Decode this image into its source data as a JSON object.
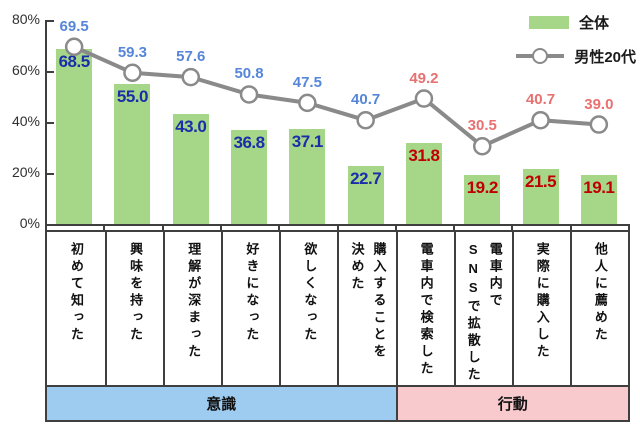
{
  "chart_data": {
    "type": "bar+line",
    "categories": [
      "初めて知った",
      "興味を持った",
      "理解が深まった",
      "好きになった",
      "欲しくなった",
      "購入することを\n決めた",
      "電車内で検索した",
      "電車内で\nSNSで拡散した",
      "実際に購入した",
      "他人に薦めた"
    ],
    "series": [
      {
        "name": "全体",
        "type": "bar",
        "values": [
          68.5,
          55.0,
          43.0,
          36.8,
          37.1,
          22.7,
          31.8,
          19.2,
          21.5,
          19.1
        ],
        "bar_color": "#A6D788",
        "label_color_awareness": "#1B2EA9",
        "label_color_action": "#C00000"
      },
      {
        "name": "男性20代",
        "type": "line",
        "values": [
          69.5,
          59.3,
          57.6,
          50.8,
          47.5,
          40.7,
          49.2,
          30.5,
          40.7,
          39.0
        ],
        "line_color": "#8A8A8A",
        "marker": "white-circle",
        "label_color_awareness": "#5586D8",
        "label_color_action": "#E87070"
      }
    ],
    "awareness_count": 6,
    "ylim": [
      0,
      80
    ],
    "yticks": [
      {
        "label": "0%",
        "value": 0
      },
      {
        "label": "20%",
        "value": 20
      },
      {
        "label": "40%",
        "value": 40
      },
      {
        "label": "60%",
        "value": 60
      },
      {
        "label": "80%",
        "value": 80
      }
    ],
    "grid": "off",
    "legend_position": "top-right",
    "groups": [
      {
        "label": "意識",
        "span": 6,
        "color": "#9ECBF0"
      },
      {
        "label": "行動",
        "span": 4,
        "color": "#F8C9CD"
      }
    ],
    "axis_color": "#3f3f3f"
  },
  "legend": {
    "items": [
      {
        "label": "全体",
        "swatch": "bar-swatch"
      },
      {
        "label": "男性20代",
        "swatch": "line-marker-swatch"
      }
    ]
  }
}
